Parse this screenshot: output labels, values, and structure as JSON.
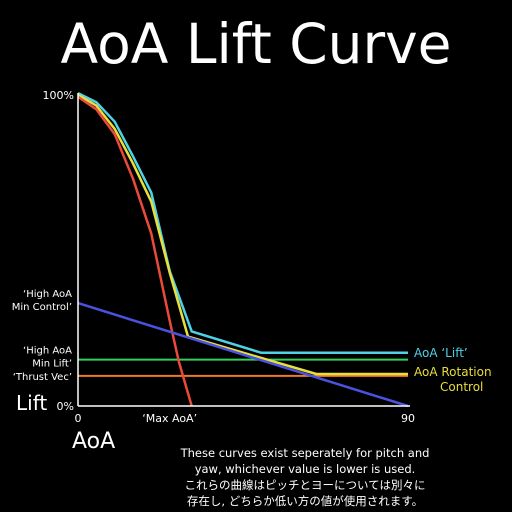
{
  "title": "AoA Lift Curve",
  "chart_data": {
    "type": "line",
    "xlabel": "AoA",
    "ylabel": "Lift",
    "xlim": [
      0,
      90
    ],
    "ylim": [
      0,
      100
    ],
    "x_ticks": [
      {
        "value": 0,
        "label": "0"
      },
      {
        "value": 25,
        "label": "‘Max AoA’"
      },
      {
        "value": 90,
        "label": "90"
      }
    ],
    "y_ticks": [
      {
        "value": 100,
        "label": "100%"
      },
      {
        "value": 0,
        "label": "0%"
      }
    ],
    "series": [
      {
        "name": "AoA ‘Lift’",
        "color": "#4fd2e6",
        "points": [
          [
            0,
            100.6
          ],
          [
            5,
            97.7
          ],
          [
            10,
            91.4
          ],
          [
            15,
            80.3
          ],
          [
            20,
            68.6
          ],
          [
            25,
            43.4
          ],
          [
            31,
            24.0
          ],
          [
            50,
            17.1
          ],
          [
            90,
            17.1
          ]
        ]
      },
      {
        "name": "AoA Rotation Control",
        "color": "#e8de3c",
        "points": [
          [
            0,
            100
          ],
          [
            5,
            96.6
          ],
          [
            10,
            89.1
          ],
          [
            15,
            78.0
          ],
          [
            20,
            65.7
          ],
          [
            25,
            42.9
          ],
          [
            30,
            22.3
          ],
          [
            65,
            10.3
          ],
          [
            90,
            10.3
          ]
        ]
      },
      {
        "name": "",
        "color": "#ea4a3a",
        "points": [
          [
            0,
            99.4
          ],
          [
            5,
            95.4
          ],
          [
            10,
            87.4
          ],
          [
            15,
            73.1
          ],
          [
            20,
            55.4
          ],
          [
            25,
            27.4
          ],
          [
            27.5,
            14.3
          ],
          [
            31,
            0
          ]
        ]
      },
      {
        "name": "",
        "color": "#4a52e0",
        "points": [
          [
            0,
            33.1
          ],
          [
            90,
            0
          ]
        ]
      }
    ],
    "reference_lines": [
      {
        "label": "‘High AoA Min Lift’",
        "value": 14.9,
        "color": "#34d05a"
      },
      {
        "label": "‘Thrust Vec’",
        "value": 9.7,
        "color": "#f07a2a"
      }
    ],
    "annotations": [
      {
        "label": "‘High AoA Min Control’",
        "value": 33.1
      }
    ]
  },
  "notes": {
    "line1": "These curves exist seperately for pitch and",
    "line2": "yaw, whichever value is lower is used.",
    "line3": "これらの曲線はピッチとヨーについては別々に",
    "line4": "存在し, どちらか低い方の値が使用されます。"
  }
}
